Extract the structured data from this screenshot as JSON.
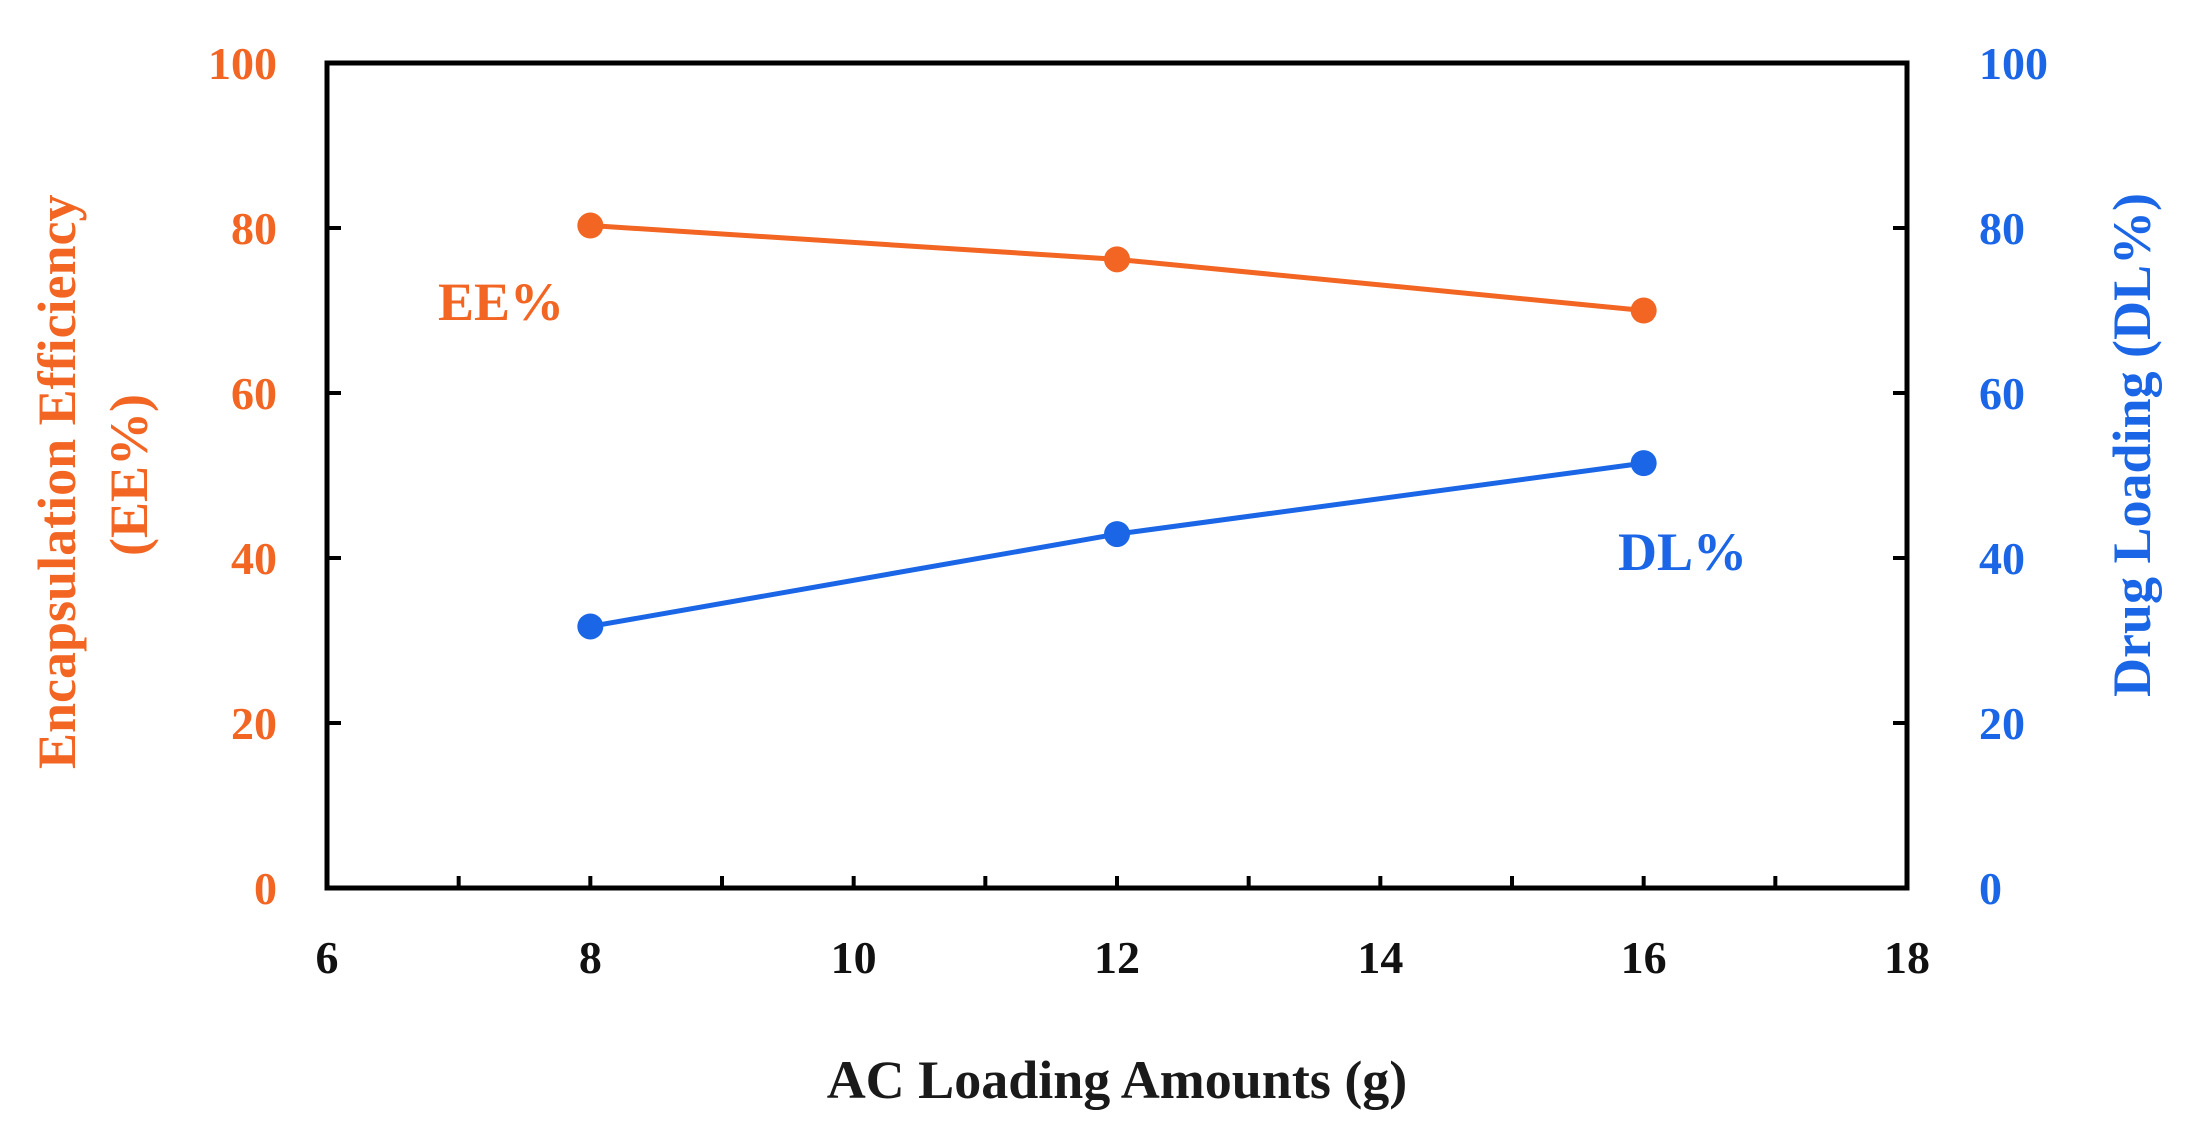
{
  "chart_data": {
    "type": "line",
    "title": "",
    "xlabel": "AC Loading Amounts (g)",
    "ylabel_left": [
      "Encapsulation Efficiency",
      "(EE%)"
    ],
    "ylabel_right": "Drug Loading (DL%)",
    "xlim": [
      6,
      18
    ],
    "ylim_left": [
      0,
      100
    ],
    "ylim_right": [
      0,
      100
    ],
    "x_ticks": [
      "6",
      "8",
      "10",
      "12",
      "14",
      "16",
      "18"
    ],
    "y_ticks_left": [
      "0",
      "20",
      "40",
      "60",
      "80",
      "100"
    ],
    "y_ticks_right": [
      "0",
      "20",
      "40",
      "60",
      "80",
      "100"
    ],
    "grid": false,
    "series": [
      {
        "name": "EE%",
        "axis": "left",
        "color": "#F26522",
        "x": [
          8,
          12,
          16
        ],
        "values": [
          80.3,
          76.2,
          70.0
        ]
      },
      {
        "name": "DL%",
        "axis": "right",
        "color": "#1A66E6",
        "x": [
          8,
          12,
          16
        ],
        "values": [
          31.7,
          42.9,
          51.5
        ]
      }
    ]
  }
}
